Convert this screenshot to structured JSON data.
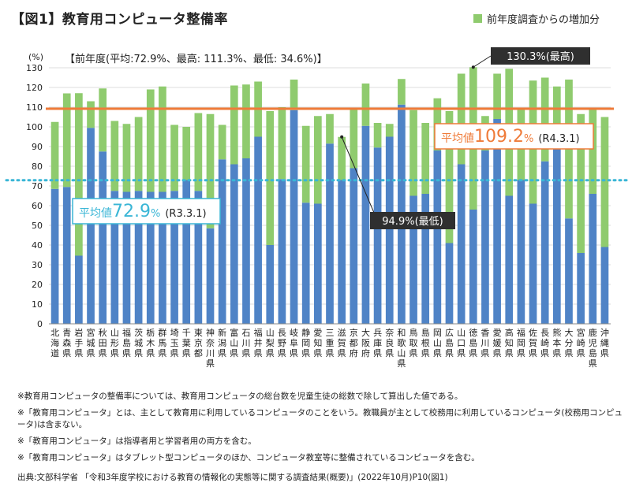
{
  "header": {
    "title": "【図1】教育用コンピュータ整備率",
    "legend_label": "前年度調査からの増加分",
    "summary": "【前年度(平均:72.9%、最高: 111.3%、最低: 34.6%)】"
  },
  "colors": {
    "base": "#4f83c6",
    "increase": "#8fcb6e",
    "avg_current": "#ef7b39",
    "avg_previous": "#3ab6d6"
  },
  "chart_data": {
    "type": "bar",
    "stacked": true,
    "ylabel": "(%)",
    "ylim": [
      0,
      130
    ],
    "yticks": [
      0,
      10,
      20,
      30,
      40,
      50,
      60,
      70,
      80,
      90,
      100,
      110,
      120,
      130
    ],
    "grid": true,
    "legend_position": "top-right",
    "categories": [
      "北海道",
      "青森県",
      "岩手県",
      "宮城県",
      "秋田県",
      "山形県",
      "福島県",
      "茨城県",
      "栃木県",
      "群馬県",
      "埼玉県",
      "千葉県",
      "東京都",
      "神奈川県",
      "新潟県",
      "富山県",
      "石川県",
      "福井県",
      "山梨県",
      "長野県",
      "岐阜県",
      "静岡県",
      "愛知県",
      "三重県",
      "滋賀県",
      "京都府",
      "大阪府",
      "兵庫県",
      "奈良県",
      "和歌山県",
      "鳥取県",
      "島根県",
      "岡山県",
      "広島県",
      "山口県",
      "徳島県",
      "香川県",
      "愛媛県",
      "高知県",
      "福岡県",
      "佐賀県",
      "長崎県",
      "熊本県",
      "大分県",
      "宮崎県",
      "鹿児島県",
      "沖縄県"
    ],
    "series": [
      {
        "name": "",
        "values": [
          68.5,
          69.5,
          34.6,
          99.5,
          87.5,
          67.5,
          67,
          67.5,
          67,
          67,
          67.5,
          73,
          67.5,
          48.5,
          83.5,
          81,
          84,
          95,
          40,
          73.5,
          108.5,
          61.5,
          61,
          91.5,
          73,
          79,
          100.5,
          89.5,
          95,
          111.3,
          65,
          66,
          88,
          41,
          81,
          58,
          88,
          104,
          65,
          73,
          61,
          82.5,
          90,
          53.5,
          36,
          66,
          39
        ]
      },
      {
        "name": "前年度調査からの増加分",
        "values": [
          34,
          47.5,
          82.5,
          13.5,
          32,
          35.5,
          34.5,
          37.5,
          52,
          53.5,
          33.5,
          27,
          39.5,
          58,
          17.5,
          40,
          37.5,
          28,
          68,
          36.5,
          15.5,
          39,
          44.5,
          15,
          21.9,
          30,
          21.5,
          12.5,
          6.5,
          13,
          43.5,
          36,
          26.5,
          67,
          46,
          72.3,
          17.5,
          23,
          64.5,
          36,
          62.5,
          42.5,
          30.5,
          70.5,
          70.5,
          43,
          66
        ]
      }
    ],
    "reference_lines": [
      {
        "value": 109.2,
        "label_prefix": "平均値",
        "label_value": "109.2",
        "label_unit": "%",
        "label_date": "(R4.3.1)"
      },
      {
        "value": 72.9,
        "label_prefix": "平均値",
        "label_value": "72.9",
        "label_unit": "%",
        "label_date": "(R3.3.1)"
      }
    ],
    "annotations": [
      {
        "text": "130.3%(最高)",
        "target_index": 35,
        "target_value": 130.3
      },
      {
        "text": "94.9%(最低)",
        "target_index": 24,
        "target_value": 94.9
      }
    ]
  },
  "notes": [
    "※教育用コンピュータの整備率については、教育用コンピュータの総台数を児童生徒の総数で除して算出した値である。",
    "※「教育用コンピュータ」とは、主として教育用に利用しているコンピュータのことをいう。教職員が主として校務用に利用しているコンピュータ(校務用コンピュータ)は含まない。",
    "※「教育用コンピュータ」は指導者用と学習者用の両方を含む。",
    "※「教育用コンピュータ」はタブレット型コンピュータのほか、コンピュータ教室等に整備されているコンピュータを含む。"
  ],
  "source": "出典:文部科学省 「令和3年度学校における教育の情報化の実態等に関する調査結果(概要)」(2022年10月)P10(図1)"
}
